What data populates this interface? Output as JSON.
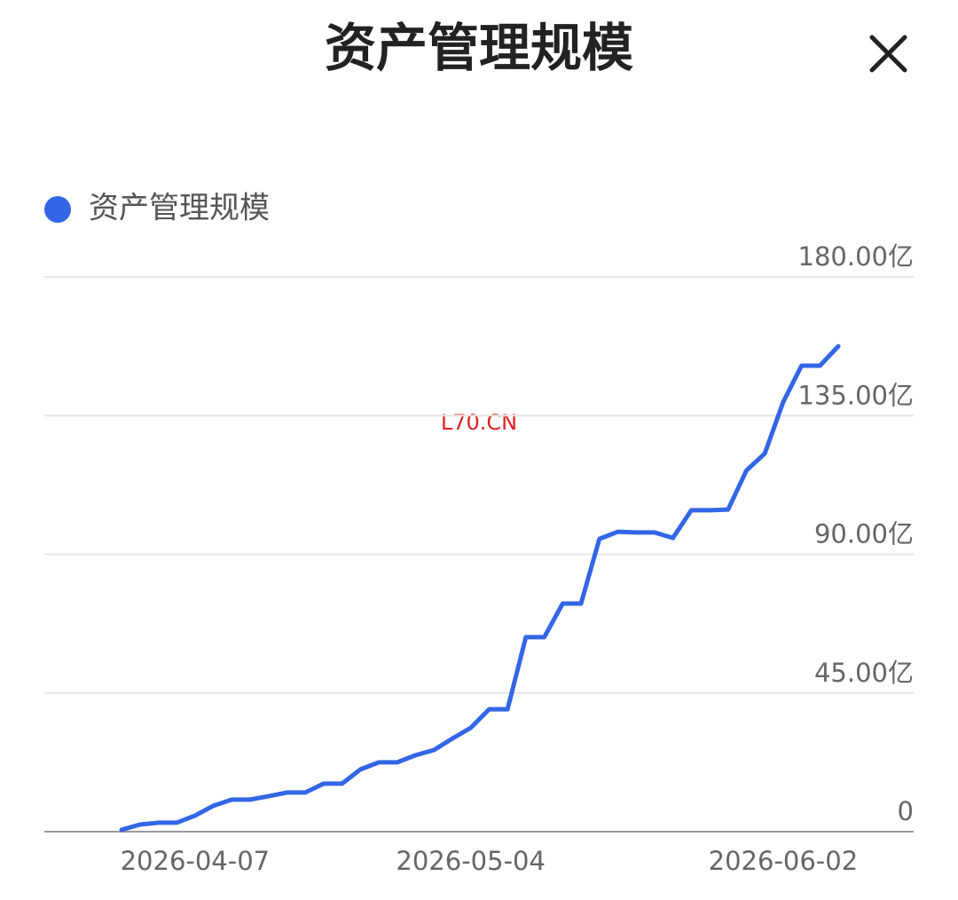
{
  "chart_data": {
    "type": "line",
    "title": "资产管理规模",
    "series": [
      {
        "name": "资产管理规模",
        "color": "#3366e6",
        "values": [
          0.6,
          2.3,
          2.9,
          2.9,
          5.2,
          8.4,
          10.4,
          10.4,
          11.5,
          12.7,
          12.7,
          15.6,
          15.6,
          20.2,
          22.5,
          22.5,
          24.8,
          26.5,
          30.2,
          33.7,
          39.7,
          39.7,
          63.1,
          63.1,
          74.0,
          74.0,
          95.0,
          97.3,
          97.1,
          97.1,
          95.3,
          104.3,
          104.3,
          104.5,
          117.2,
          122.7,
          139.4,
          151.2,
          151.2,
          157.5
        ]
      }
    ],
    "categories": [
      null,
      null,
      null,
      null,
      "2026-04-07",
      null,
      null,
      null,
      null,
      null,
      null,
      null,
      null,
      null,
      null,
      null,
      null,
      null,
      null,
      "2026-05-04",
      null,
      null,
      null,
      null,
      null,
      null,
      null,
      null,
      null,
      null,
      null,
      null,
      null,
      null,
      null,
      null,
      "2026-06-02",
      null,
      null,
      null
    ],
    "ylim": [
      0,
      180
    ],
    "yticks": [
      0,
      {
        "value": 45,
        "label": "45.00亿"
      },
      {
        "value": 90,
        "label": "90.00亿"
      },
      {
        "value": 135,
        "label": "135.00亿"
      },
      {
        "value": 180,
        "label": "180.00亿"
      }
    ],
    "grid": true,
    "annotation": "L70.CN"
  }
}
